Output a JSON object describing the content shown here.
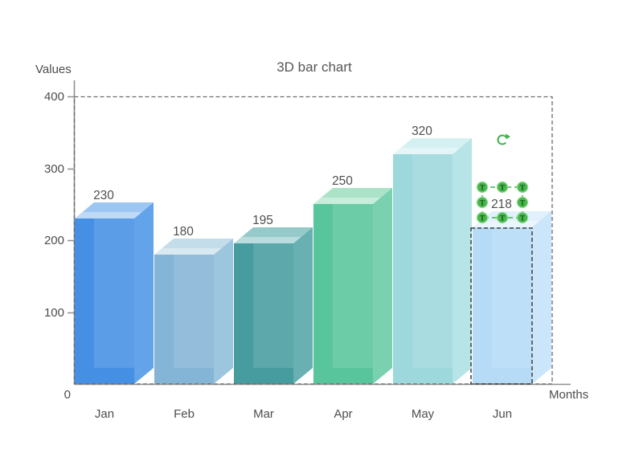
{
  "chart_data": {
    "type": "bar",
    "variant": "3d",
    "title": "3D bar chart",
    "xlabel": "Months",
    "ylabel": "Values",
    "categories": [
      "Jan",
      "Feb",
      "Mar",
      "Apr",
      "May",
      "Jun"
    ],
    "values": [
      230,
      180,
      195,
      250,
      320,
      218
    ],
    "yticks": [
      100,
      200,
      300,
      400
    ],
    "ylim": [
      0,
      400
    ],
    "grid": false,
    "legend": "none",
    "bar_colors": [
      {
        "front": "#4590e4",
        "top": "#9dc6f3",
        "side": "#63a3ea"
      },
      {
        "front": "#84b4d6",
        "top": "#c4ddeb",
        "side": "#9cc6de"
      },
      {
        "front": "#479ca0",
        "top": "#96caca",
        "side": "#68b0b2"
      },
      {
        "front": "#58c59c",
        "top": "#abe3c8",
        "side": "#79d1b0"
      },
      {
        "front": "#9dd8dc",
        "top": "#d5f0f1",
        "side": "#b6e4e7"
      },
      {
        "front": "#b6dbf7",
        "top": "#e1f0fc",
        "side": "#cbe5fa"
      }
    ]
  },
  "axis": {
    "origin_label": "0",
    "axis_color": "#8f8f8f",
    "text_color": "#4d4d4d"
  },
  "selection": {
    "selected_category": "Jun",
    "selected_value_text": "218",
    "handle_glyph": "T",
    "accent_green": "#43b14a",
    "handle_fill": "#4ab54e",
    "handle_rim": "#8edc90",
    "handle_glyph_color": "#0d5c12",
    "chart_outline_color": "#6a6a6a",
    "bar_outline_color": "#3f3f3f"
  }
}
